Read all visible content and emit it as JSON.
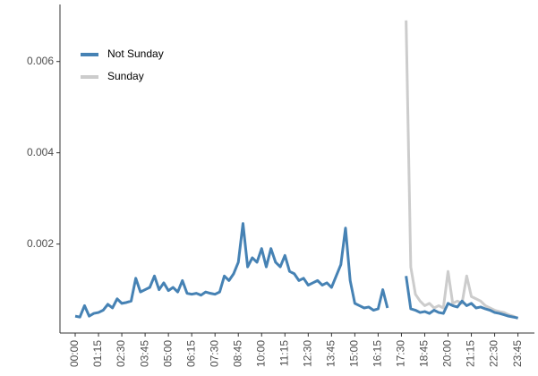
{
  "chart_data": {
    "type": "line",
    "x": [
      0,
      15,
      30,
      45,
      60,
      75,
      90,
      105,
      120,
      135,
      150,
      165,
      180,
      195,
      210,
      225,
      240,
      255,
      270,
      285,
      300,
      315,
      330,
      345,
      360,
      375,
      390,
      405,
      420,
      435,
      450,
      465,
      480,
      495,
      510,
      525,
      540,
      555,
      570,
      585,
      600,
      615,
      630,
      645,
      660,
      675,
      690,
      705,
      720,
      735,
      750,
      765,
      780,
      795,
      810,
      825,
      840,
      855,
      870,
      885,
      900,
      915,
      930,
      945,
      960,
      975,
      990,
      1005,
      1020,
      1035,
      1050,
      1065,
      1080,
      1095,
      1110,
      1125,
      1140,
      1155,
      1170,
      1185,
      1200,
      1215,
      1230,
      1245,
      1260,
      1275,
      1290,
      1305,
      1320,
      1335,
      1350,
      1365,
      1380,
      1395,
      1410,
      1425
    ],
    "series": [
      {
        "name": "Not Sunday",
        "color": "#4682b4",
        "values": [
          0.00042,
          0.0004,
          0.00065,
          0.00042,
          0.00048,
          0.0005,
          0.00055,
          0.00068,
          0.0006,
          0.0008,
          0.0007,
          0.00072,
          0.00075,
          0.00125,
          0.00095,
          0.001,
          0.00105,
          0.0013,
          0.001,
          0.00115,
          0.00098,
          0.00105,
          0.00095,
          0.0012,
          0.00092,
          0.0009,
          0.00092,
          0.00088,
          0.00095,
          0.00092,
          0.0009,
          0.00095,
          0.0013,
          0.0012,
          0.00135,
          0.0016,
          0.00245,
          0.0015,
          0.0017,
          0.0016,
          0.0019,
          0.0015,
          0.0019,
          0.0016,
          0.0015,
          0.00175,
          0.0014,
          0.00135,
          0.0012,
          0.00125,
          0.0011,
          0.00115,
          0.0012,
          0.0011,
          0.00115,
          0.00105,
          0.0013,
          0.00155,
          0.00235,
          0.0012,
          0.0007,
          0.00065,
          0.0006,
          0.00062,
          0.00055,
          0.00058,
          0.001,
          0.0006,
          null,
          null,
          null,
          0.0013,
          0.00058,
          0.00055,
          0.0005,
          0.00052,
          0.00048,
          0.00055,
          0.0005,
          0.00048,
          0.0007,
          0.00065,
          0.00062,
          0.00075,
          0.00065,
          0.0007,
          0.0006,
          0.00062,
          0.00058,
          0.00055,
          0.0005,
          0.00048,
          0.00045,
          0.00042,
          0.0004,
          0.00038
        ]
      },
      {
        "name": "Sunday",
        "color": "#cccccc",
        "values": [
          null,
          null,
          null,
          null,
          null,
          null,
          null,
          null,
          null,
          null,
          null,
          null,
          null,
          null,
          null,
          null,
          null,
          null,
          null,
          null,
          null,
          null,
          null,
          null,
          null,
          null,
          null,
          null,
          null,
          null,
          null,
          null,
          null,
          null,
          null,
          null,
          null,
          null,
          null,
          null,
          null,
          null,
          null,
          null,
          null,
          null,
          null,
          null,
          null,
          null,
          null,
          null,
          null,
          null,
          null,
          null,
          null,
          null,
          null,
          null,
          null,
          null,
          null,
          null,
          null,
          null,
          null,
          null,
          null,
          null,
          null,
          0.0069,
          0.0015,
          0.0009,
          0.00075,
          0.00065,
          0.0007,
          0.0006,
          0.00065,
          0.0006,
          0.0014,
          0.0007,
          0.00075,
          0.0007,
          0.0013,
          0.00085,
          0.0008,
          0.00075,
          0.00065,
          0.0006,
          0.00055,
          0.00052,
          0.0005,
          0.00045,
          0.00042,
          0.00037
        ]
      }
    ],
    "xlim": [
      -49,
      1478
    ],
    "xticks": [
      {
        "value": 0,
        "label": "00:00"
      },
      {
        "value": 75,
        "label": "01:15"
      },
      {
        "value": 150,
        "label": "02:30"
      },
      {
        "value": 225,
        "label": "03:45"
      },
      {
        "value": 300,
        "label": "05:00"
      },
      {
        "value": 375,
        "label": "06:15"
      },
      {
        "value": 450,
        "label": "07:30"
      },
      {
        "value": 525,
        "label": "08:45"
      },
      {
        "value": 600,
        "label": "10:00"
      },
      {
        "value": 675,
        "label": "11:15"
      },
      {
        "value": 750,
        "label": "12:30"
      },
      {
        "value": 825,
        "label": "13:45"
      },
      {
        "value": 900,
        "label": "15:00"
      },
      {
        "value": 975,
        "label": "16:15"
      },
      {
        "value": 1050,
        "label": "17:30"
      },
      {
        "value": 1125,
        "label": "18:45"
      },
      {
        "value": 1200,
        "label": "20:00"
      },
      {
        "value": 1275,
        "label": "21:15"
      },
      {
        "value": 1350,
        "label": "22:30"
      },
      {
        "value": 1425,
        "label": "23:45"
      }
    ],
    "ylim": [
      5e-05,
      0.00725
    ],
    "yticks": [
      0.002,
      0.004,
      0.006
    ],
    "legend": "top-left"
  }
}
